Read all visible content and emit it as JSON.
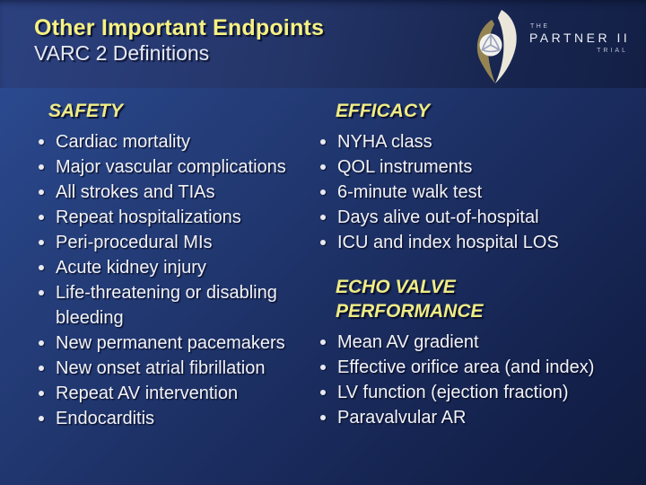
{
  "slide": {
    "title": "Other Important Endpoints",
    "subtitle": "VARC 2 Definitions"
  },
  "logo": {
    "the": "THE",
    "partner": "PARTNER II",
    "trial": "TRIAL"
  },
  "safety": {
    "heading": "SAFETY",
    "items": [
      "Cardiac mortality",
      "Major vascular complications",
      "All strokes and TIAs",
      "Repeat hospitalizations",
      "Peri-procedural MIs",
      "Acute kidney injury",
      "Life-threatening or disabling bleeding",
      "New permanent pacemakers",
      "New onset atrial fibrillation",
      "Repeat AV intervention",
      "Endocarditis"
    ]
  },
  "efficacy": {
    "heading": "EFFICACY",
    "items": [
      "NYHA class",
      "QOL instruments",
      "6-minute walk test",
      "Days alive out-of-hospital",
      "ICU and index hospital LOS"
    ]
  },
  "echo": {
    "heading": "ECHO VALVE PERFORMANCE",
    "items": [
      "Mean AV gradient",
      "Effective orifice area (and index)",
      "LV function (ejection fraction)",
      "Paravalvular AR"
    ]
  },
  "colors": {
    "accent_yellow": "#f0ec85",
    "text_white": "#f2f2f6",
    "bg_light_blue": "#2d4d97",
    "bg_dark_navy": "#101b3e",
    "logo_gold": "#958453",
    "logo_cream": "#eae6da"
  }
}
